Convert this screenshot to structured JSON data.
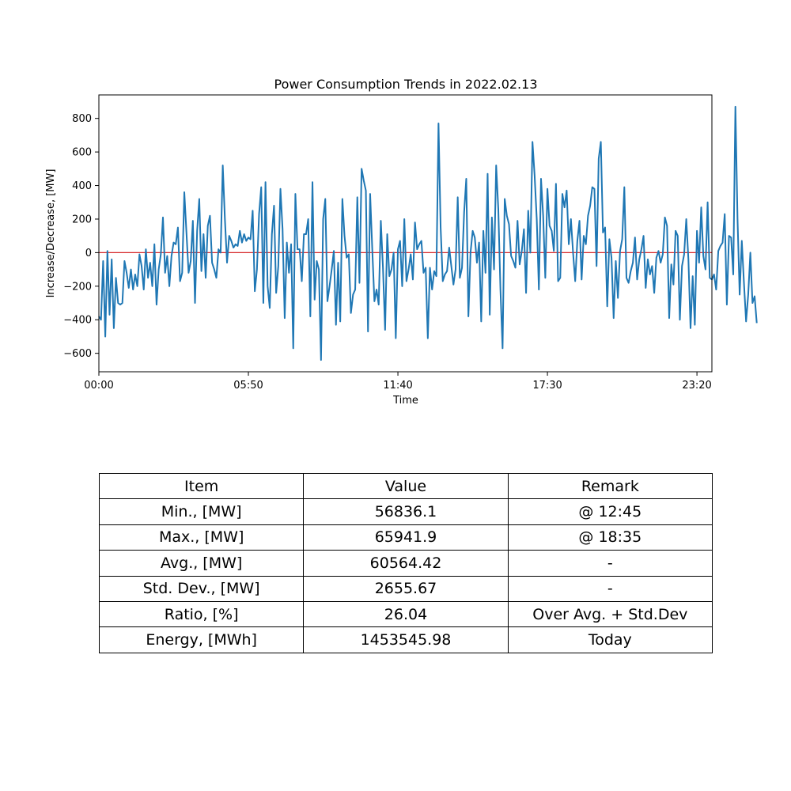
{
  "chart_data": {
    "type": "line",
    "title": "Power Consumption Trends in 2022.02.13",
    "xlabel": "Time",
    "ylabel": "Increase/Decrease, [MW]",
    "x_start": "00:00",
    "x_step_minutes": 5,
    "xticks": [
      {
        "value": 0,
        "label": "00:00"
      },
      {
        "value": 350,
        "label": "05:50"
      },
      {
        "value": 700,
        "label": "11:40"
      },
      {
        "value": 1050,
        "label": "17:30"
      },
      {
        "value": 1400,
        "label": "23:20"
      }
    ],
    "yticks": [
      -600,
      -400,
      -200,
      0,
      200,
      400,
      600,
      800
    ],
    "xlim": [
      0,
      1435
    ],
    "ylim": [
      -710,
      940
    ],
    "grid": false,
    "reference_line": {
      "y": 0,
      "color": "#d62728"
    },
    "series": [
      {
        "color": "#1f77b4",
        "values": [
          -380,
          -400,
          -50,
          -500,
          10,
          -370,
          -40,
          -450,
          -150,
          -300,
          -310,
          -300,
          -50,
          -120,
          -210,
          -100,
          -220,
          -130,
          -200,
          -10,
          -80,
          -220,
          20,
          -150,
          -60,
          -200,
          50,
          -310,
          -100,
          -10,
          210,
          -120,
          -20,
          -200,
          -20,
          60,
          50,
          150,
          -170,
          -120,
          360,
          120,
          -120,
          -50,
          190,
          -300,
          130,
          320,
          -110,
          110,
          -150,
          160,
          220,
          -60,
          -100,
          -150,
          20,
          0,
          520,
          200,
          -60,
          100,
          70,
          30,
          50,
          40,
          130,
          60,
          110,
          70,
          90,
          80,
          250,
          -230,
          -100,
          230,
          390,
          -300,
          420,
          -200,
          -330,
          110,
          280,
          -240,
          -80,
          380,
          140,
          -390,
          60,
          -120,
          50,
          -570,
          350,
          20,
          20,
          -170,
          110,
          110,
          200,
          -380,
          420,
          -280,
          -50,
          -100,
          -640,
          200,
          320,
          -290,
          -200,
          -100,
          10,
          -430,
          -60,
          -410,
          320,
          100,
          -30,
          -10,
          -360,
          -250,
          -220,
          330,
          -180,
          500,
          430,
          370,
          -470,
          350,
          20,
          -290,
          -220,
          -310,
          190,
          -90,
          -460,
          110,
          -140,
          -100,
          0,
          -510,
          20,
          70,
          -200,
          200,
          -170,
          -100,
          -10,
          -160,
          180,
          20,
          50,
          70,
          -120,
          -90,
          -510,
          -90,
          -220,
          -110,
          -140,
          770,
          150,
          -170,
          -130,
          -110,
          30,
          -80,
          -190,
          -100,
          330,
          -150,
          -90,
          240,
          440,
          -380,
          0,
          130,
          90,
          -60,
          60,
          -410,
          130,
          -120,
          470,
          -370,
          210,
          -100,
          520,
          260,
          -220,
          -570,
          320,
          220,
          170,
          -20,
          -50,
          -90,
          190,
          -70,
          10,
          140,
          -240,
          250,
          0,
          660,
          460,
          200,
          -220,
          440,
          220,
          -150,
          380,
          160,
          130,
          10,
          410,
          -170,
          -150,
          350,
          270,
          370,
          50,
          200,
          0,
          -170,
          70,
          190,
          -160,
          100,
          50,
          220,
          280,
          390,
          380,
          -80,
          560,
          660,
          120,
          150,
          -320,
          80,
          -30,
          -390,
          -50,
          -270,
          10,
          80,
          390,
          -150,
          -180,
          -110,
          -60,
          90,
          -160,
          -40,
          20,
          100,
          -210,
          -40,
          -130,
          -80,
          -240,
          -30,
          10,
          -60,
          -10,
          210,
          160,
          -390,
          -70,
          -190,
          130,
          100,
          -400,
          -80,
          -10,
          200,
          -40,
          -450,
          -140,
          -430,
          130,
          -60,
          270,
          -20,
          -100,
          300,
          -150,
          -160,
          -130,
          -220,
          10,
          40,
          60,
          230,
          -310,
          100,
          90,
          -130,
          870,
          200,
          -250,
          70,
          -180,
          -410,
          -250,
          0,
          -300,
          -260,
          -420
        ]
      }
    ]
  },
  "table": {
    "headers": [
      "Item",
      "Value",
      "Remark"
    ],
    "rows": [
      [
        "Min., [MW]",
        "56836.1",
        "@ 12:45"
      ],
      [
        "Max., [MW]",
        "65941.9",
        "@ 18:35"
      ],
      [
        "Avg., [MW]",
        "60564.42",
        "-"
      ],
      [
        "Std. Dev., [MW]",
        "2655.67",
        "-"
      ],
      [
        "Ratio, [%]",
        "26.04",
        "Over Avg. + Std.Dev"
      ],
      [
        "Energy, [MWh]",
        "1453545.98",
        "Today"
      ]
    ]
  }
}
